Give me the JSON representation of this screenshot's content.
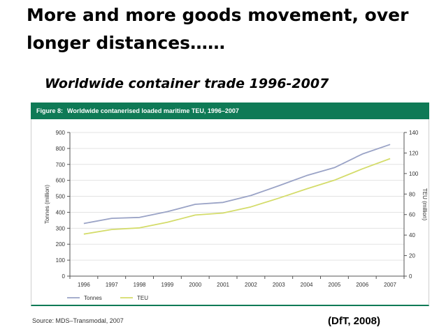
{
  "slide": {
    "title": "More and more goods movement, over longer distances……",
    "subtitle": "Worldwide container trade 1996-2007",
    "citation": "(DfT, 2008)"
  },
  "figure": {
    "label": "Figure 8:",
    "title": "Worldwide contanerised loaded maritime TEU, 1996–2007",
    "source": "Source: MDS–Transmodal, 2007",
    "header_color": "#0f7a56"
  },
  "chart_data": {
    "type": "line",
    "x": [
      "1996",
      "1997",
      "1998",
      "1999",
      "2000",
      "2001",
      "2002",
      "2003",
      "2004",
      "2005",
      "2006",
      "2007"
    ],
    "ylabel": "Tonnes (million)",
    "y2label": "TEU (million)",
    "ylim": [
      0,
      900
    ],
    "y2lim": [
      0,
      140
    ],
    "yticks": [
      0,
      100,
      200,
      300,
      400,
      500,
      600,
      700,
      800,
      900
    ],
    "y2ticks": [
      0,
      20,
      40,
      60,
      80,
      100,
      120,
      140
    ],
    "grid": true,
    "legend_position": "bottom-left",
    "series": [
      {
        "name": "Tonnes",
        "axis": "left",
        "color": "#9aa3c6",
        "values": [
          330,
          362,
          368,
          404,
          450,
          462,
          505,
          566,
          630,
          680,
          765,
          825
        ]
      },
      {
        "name": "TEU",
        "axis": "right",
        "color": "#d4dc6a",
        "values": [
          41,
          45.5,
          47,
          52.5,
          59.5,
          61.5,
          67.5,
          76,
          85,
          93.5,
          104.5,
          114.5
        ]
      }
    ]
  }
}
